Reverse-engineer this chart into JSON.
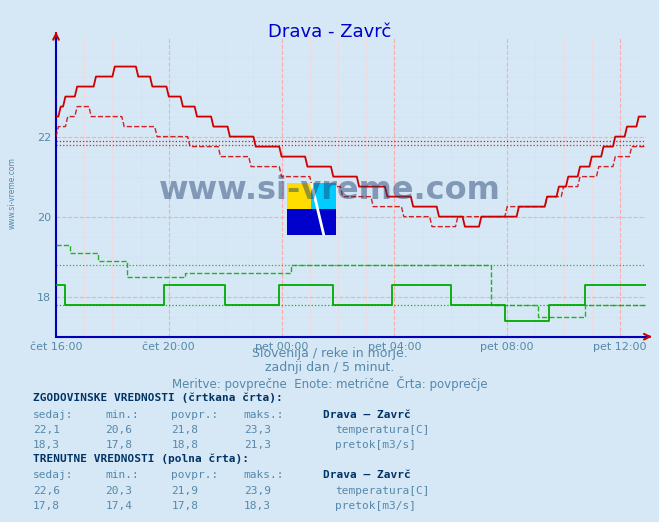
{
  "title": "Drava - Zavrč",
  "title_color": "#0000cc",
  "bg_color": "#d6e8f5",
  "x_labels": [
    "čet 16:00",
    "čet 20:00",
    "pet 00:00",
    "pet 04:00",
    "pet 08:00",
    "pet 12:00"
  ],
  "x_ticks_pos": [
    0,
    48,
    96,
    144,
    192,
    240
  ],
  "total_points": 252,
  "ylim": [
    17.0,
    24.5
  ],
  "yticks": [
    18,
    20,
    22
  ],
  "temp_solid_color": "#cc0000",
  "temp_dashed_color": "#cc0000",
  "flow_solid_color": "#00aa00",
  "flow_dashed_color": "#00aa00",
  "hline_temp_hist": 21.8,
  "hline_temp_curr": 21.9,
  "hline_flow_hist": 18.8,
  "hline_flow_curr": 17.8,
  "subtitle1": "Slovenija / reke in morje.",
  "subtitle2": "zadnji dan / 5 minut.",
  "subtitle3": "Meritve: povprečne  Enote: metrične  Črta: povprečje",
  "text_color": "#5588aa",
  "watermark": "www.si-vreme.com",
  "watermark_color": "#1a3a6b",
  "left_watermark": "www.si-vreme.com",
  "table_hist_title": "ZGODOVINSKE VREDNOSTI (črtkana črta):",
  "table_curr_title": "TRENUTNE VREDNOSTI (polna črta):",
  "table_headers": [
    "sedaj:",
    "min.:",
    "povpr.:",
    "maks.:"
  ],
  "station_name": "Drava – Zavrč",
  "table_hist_temp": [
    "22,1",
    "20,6",
    "21,8",
    "23,3"
  ],
  "table_hist_flow": [
    "18,3",
    "17,8",
    "18,8",
    "21,3"
  ],
  "table_curr_temp": [
    "22,6",
    "20,3",
    "21,9",
    "23,9"
  ],
  "table_curr_flow": [
    "17,8",
    "17,4",
    "17,8",
    "18,3"
  ],
  "temp_label": "temperatura[C]",
  "flow_label": "pretok[m3/s]"
}
